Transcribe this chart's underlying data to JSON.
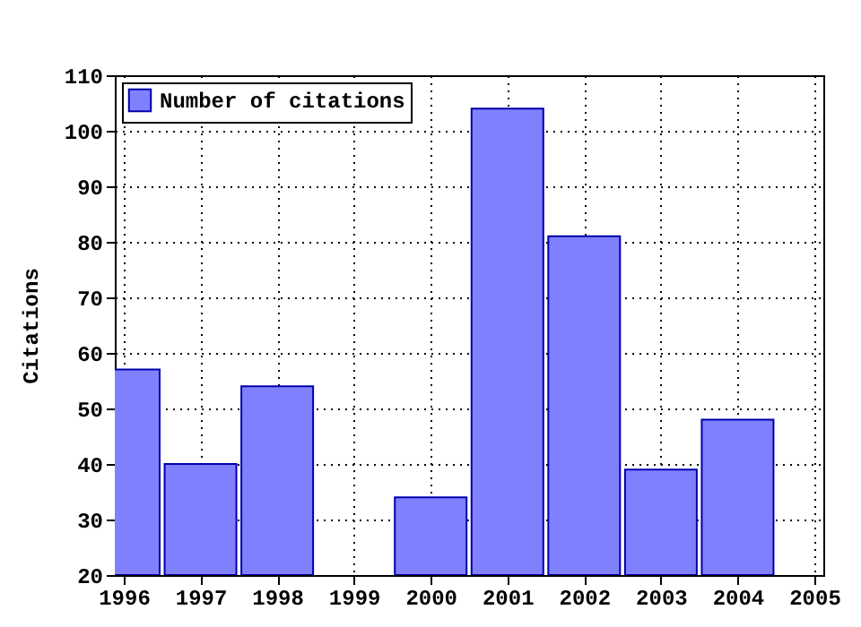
{
  "chart_data": {
    "type": "bar",
    "ylabel": "Citations",
    "x": [
      1996,
      1997,
      1998,
      1999,
      2000,
      2001,
      2002,
      2003,
      2004
    ],
    "series": [
      {
        "name": "Number of citations",
        "color": "#8080ff",
        "values": [
          57,
          40,
          54,
          null,
          34,
          104,
          81,
          39,
          48
        ]
      }
    ],
    "xlim": [
      1996,
      2005
    ],
    "xticks": [
      1996,
      1997,
      1998,
      1999,
      2000,
      2001,
      2002,
      2003,
      2004,
      2005
    ],
    "ylim": [
      20,
      110
    ],
    "yticks": [
      20,
      30,
      40,
      50,
      60,
      70,
      80,
      90,
      100,
      110
    ],
    "grid": true,
    "legend": "top left"
  }
}
